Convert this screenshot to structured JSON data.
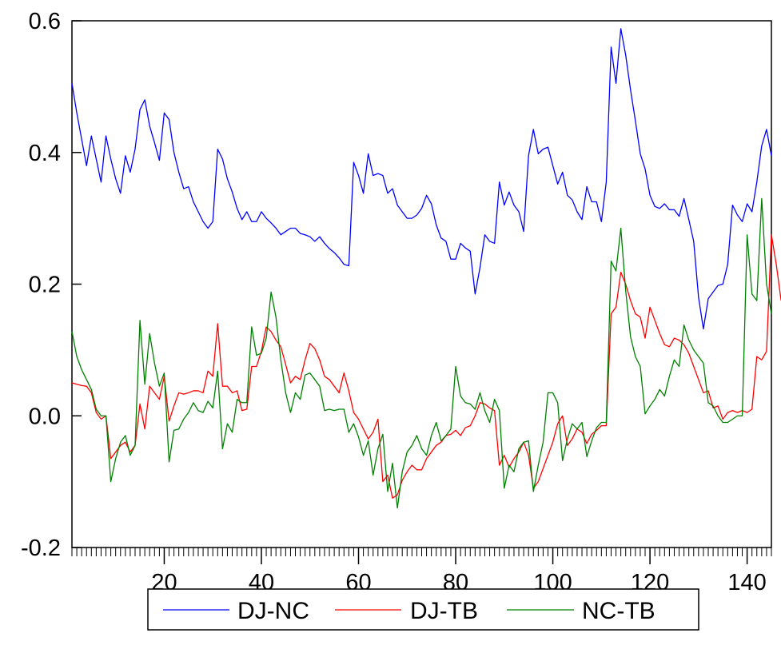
{
  "chart_data": {
    "type": "line",
    "title": "",
    "xlabel": "",
    "ylabel": "",
    "xlim": [
      1,
      145
    ],
    "ylim": [
      -0.2,
      0.6
    ],
    "x_ticks": [
      20,
      40,
      60,
      80,
      100,
      120,
      140
    ],
    "y_ticks": [
      -0.2,
      0.0,
      0.2,
      0.4,
      0.6
    ],
    "y_tick_labels": [
      "-0.2",
      "0.0",
      "0.2",
      "0.4",
      "0.6"
    ],
    "grid": false,
    "legend_position": "bottom",
    "series": [
      {
        "name": "DJ-NC",
        "color": "#0000ff",
        "values": [
          0.505,
          0.46,
          0.42,
          0.38,
          0.425,
          0.39,
          0.355,
          0.425,
          0.39,
          0.36,
          0.338,
          0.395,
          0.37,
          0.405,
          0.465,
          0.48,
          0.44,
          0.415,
          0.388,
          0.46,
          0.45,
          0.4,
          0.37,
          0.345,
          0.348,
          0.325,
          0.31,
          0.295,
          0.285,
          0.295,
          0.405,
          0.39,
          0.36,
          0.34,
          0.315,
          0.298,
          0.31,
          0.295,
          0.295,
          0.31,
          0.3,
          0.293,
          0.285,
          0.275,
          0.28,
          0.285,
          0.285,
          0.277,
          0.275,
          0.272,
          0.265,
          0.272,
          0.262,
          0.254,
          0.248,
          0.24,
          0.23,
          0.228,
          0.385,
          0.365,
          0.338,
          0.398,
          0.365,
          0.368,
          0.365,
          0.338,
          0.345,
          0.32,
          0.31,
          0.3,
          0.3,
          0.305,
          0.315,
          0.335,
          0.322,
          0.29,
          0.27,
          0.265,
          0.238,
          0.238,
          0.262,
          0.255,
          0.25,
          0.185,
          0.225,
          0.275,
          0.265,
          0.262,
          0.355,
          0.32,
          0.34,
          0.32,
          0.31,
          0.28,
          0.395,
          0.435,
          0.398,
          0.405,
          0.408,
          0.38,
          0.352,
          0.37,
          0.335,
          0.328,
          0.31,
          0.298,
          0.348,
          0.325,
          0.325,
          0.295,
          0.355,
          0.56,
          0.505,
          0.588,
          0.548,
          0.495,
          0.448,
          0.398,
          0.375,
          0.335,
          0.318,
          0.315,
          0.322,
          0.313,
          0.313,
          0.303,
          0.33,
          0.298,
          0.265,
          0.18,
          0.132,
          0.178,
          0.188,
          0.198,
          0.2,
          0.23,
          0.32,
          0.305,
          0.295,
          0.322,
          0.31,
          0.355,
          0.41,
          0.435,
          0.395
        ]
      },
      {
        "name": "DJ-TB",
        "color": "#ff0000",
        "values": [
          0.05,
          0.048,
          0.046,
          0.045,
          0.035,
          0.005,
          -0.005,
          0.0,
          -0.065,
          -0.055,
          -0.045,
          -0.04,
          -0.055,
          -0.045,
          0.018,
          -0.02,
          0.045,
          0.035,
          0.025,
          0.06,
          -0.008,
          0.015,
          0.035,
          0.033,
          0.035,
          0.038,
          0.038,
          0.035,
          0.068,
          0.06,
          0.14,
          0.045,
          0.045,
          0.035,
          0.038,
          0.008,
          0.01,
          0.075,
          0.075,
          0.098,
          0.135,
          0.128,
          0.115,
          0.105,
          0.078,
          0.05,
          0.06,
          0.055,
          0.085,
          0.11,
          0.102,
          0.085,
          0.06,
          0.055,
          0.045,
          0.035,
          0.065,
          0.038,
          0.005,
          -0.005,
          -0.02,
          -0.035,
          -0.025,
          -0.005,
          -0.1,
          -0.09,
          -0.125,
          -0.12,
          -0.098,
          -0.085,
          -0.075,
          -0.082,
          -0.082,
          -0.065,
          -0.055,
          -0.045,
          -0.04,
          -0.03,
          -0.028,
          -0.022,
          -0.03,
          -0.018,
          -0.015,
          0.0,
          0.02,
          0.018,
          0.012,
          0.008,
          -0.075,
          -0.06,
          -0.078,
          -0.065,
          -0.055,
          -0.04,
          -0.06,
          -0.11,
          -0.1,
          -0.08,
          -0.06,
          -0.04,
          -0.012,
          0.0,
          -0.045,
          -0.035,
          -0.02,
          -0.025,
          -0.042,
          -0.028,
          -0.022,
          -0.015,
          -0.015,
          0.155,
          0.165,
          0.218,
          0.2,
          0.175,
          0.155,
          0.15,
          0.118,
          0.165,
          0.145,
          0.125,
          0.108,
          0.105,
          0.118,
          0.115,
          0.108,
          0.095,
          0.075,
          0.055,
          0.035,
          0.038,
          0.012,
          0.015,
          -0.005,
          0.005,
          0.008,
          0.005,
          0.008,
          0.005,
          0.01,
          0.09,
          0.085,
          0.098,
          0.275,
          0.23,
          0.175
        ]
      },
      {
        "name": "NC-TB",
        "color": "#008000",
        "values": [
          0.128,
          0.09,
          0.07,
          0.055,
          0.04,
          0.01,
          0.0,
          0.0,
          -0.1,
          -0.065,
          -0.04,
          -0.03,
          -0.06,
          -0.045,
          0.145,
          0.048,
          0.125,
          0.08,
          0.045,
          0.065,
          -0.07,
          -0.022,
          -0.02,
          -0.005,
          0.005,
          0.02,
          0.008,
          0.005,
          0.022,
          0.012,
          0.068,
          -0.05,
          -0.012,
          -0.025,
          0.025,
          0.02,
          0.02,
          0.135,
          0.092,
          0.095,
          0.118,
          0.188,
          0.15,
          0.085,
          0.035,
          0.005,
          0.035,
          0.025,
          0.062,
          0.065,
          0.055,
          0.045,
          0.008,
          0.01,
          0.008,
          0.01,
          0.01,
          -0.025,
          -0.012,
          -0.032,
          -0.06,
          -0.038,
          -0.09,
          -0.05,
          -0.028,
          -0.115,
          -0.072,
          -0.14,
          -0.085,
          -0.055,
          -0.045,
          -0.03,
          -0.05,
          -0.06,
          -0.03,
          -0.01,
          -0.038,
          -0.03,
          -0.02,
          0.075,
          0.03,
          0.02,
          0.018,
          0.01,
          0.035,
          0.008,
          -0.01,
          0.025,
          0.008,
          -0.11,
          -0.075,
          -0.085,
          -0.05,
          -0.04,
          -0.038,
          -0.115,
          -0.075,
          -0.04,
          0.035,
          0.035,
          0.02,
          -0.068,
          -0.035,
          -0.012,
          -0.02,
          -0.01,
          -0.062,
          -0.038,
          -0.018,
          -0.01,
          -0.01,
          0.235,
          0.22,
          0.285,
          0.19,
          0.12,
          0.09,
          0.075,
          0.003,
          0.015,
          0.025,
          0.04,
          0.03,
          0.06,
          0.085,
          0.075,
          0.138,
          0.115,
          0.1,
          0.09,
          0.08,
          0.02,
          0.015,
          0.0,
          -0.01,
          -0.01,
          -0.005,
          0.0,
          0.0,
          0.275,
          0.185,
          0.175,
          0.33,
          0.2,
          0.155
        ]
      }
    ]
  }
}
